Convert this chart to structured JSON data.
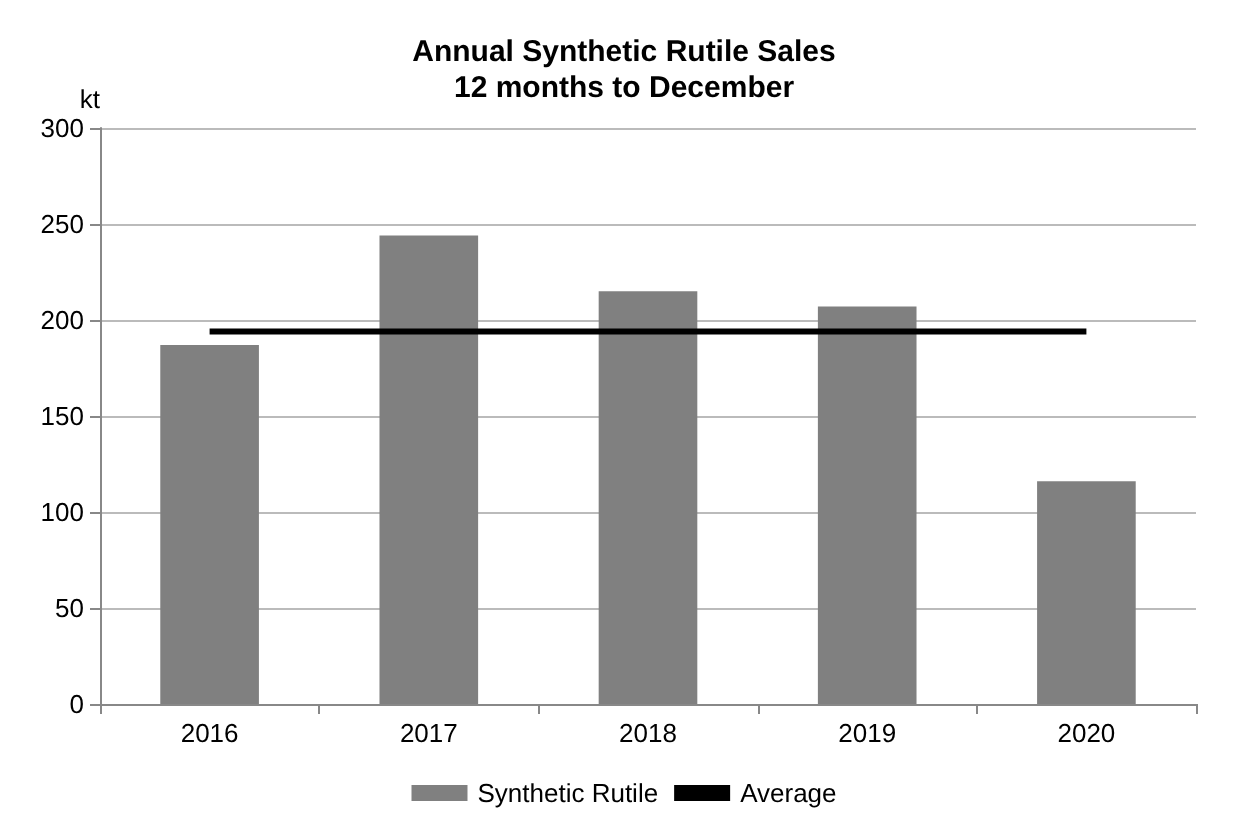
{
  "chart_data": {
    "type": "bar",
    "title": "Annual Synthetic Rutile Sales\n12 months to December",
    "ylabel": "kt",
    "categories": [
      "2016",
      "2017",
      "2018",
      "2019",
      "2020"
    ],
    "series": [
      {
        "name": "Synthetic Rutile",
        "color": "#808080",
        "values": [
          187,
          244,
          215,
          207,
          116
        ]
      },
      {
        "name": "Average",
        "type": "line",
        "color": "#000000",
        "values": [
          194,
          194,
          194,
          194,
          194
        ]
      }
    ],
    "ylim": [
      0,
      300
    ],
    "yticks": [
      0,
      50,
      100,
      150,
      200,
      250,
      300
    ],
    "grid": "y",
    "legend": "bottom",
    "marker": "none"
  }
}
